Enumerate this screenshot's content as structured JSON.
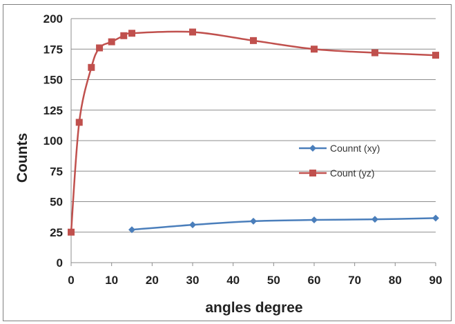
{
  "chart_data": {
    "type": "line",
    "xlabel": "angles degree",
    "ylabel": "Counts",
    "xlim": [
      0,
      90
    ],
    "ylim": [
      0,
      200
    ],
    "xticks": [
      0,
      10,
      20,
      30,
      40,
      50,
      60,
      70,
      80,
      90
    ],
    "yticks": [
      0,
      25,
      50,
      75,
      100,
      125,
      150,
      175,
      200
    ],
    "grid": "horizontal",
    "legend_position": "right",
    "series": [
      {
        "name": "Counnt (xy)",
        "color": "#4a7ebb",
        "marker": "diamond",
        "x": [
          15,
          30,
          45,
          60,
          75,
          90
        ],
        "y": [
          27,
          31,
          34,
          35,
          35.5,
          36.5
        ]
      },
      {
        "name": "Count (yz)",
        "color": "#c0504d",
        "marker": "square",
        "x": [
          0,
          2,
          5,
          7,
          10,
          13,
          15,
          30,
          45,
          60,
          75,
          90
        ],
        "y": [
          25,
          115,
          160,
          176,
          181,
          186,
          188,
          189,
          182,
          175,
          172,
          170
        ]
      }
    ]
  }
}
